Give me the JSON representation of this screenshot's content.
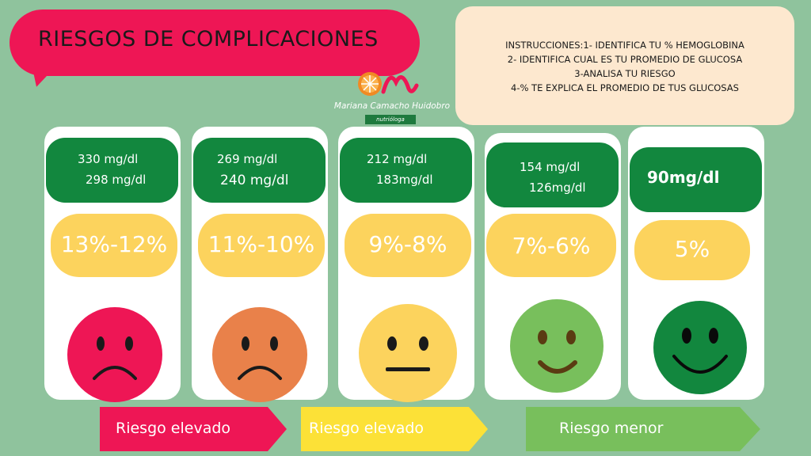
{
  "title": "RIESGOS DE COMPLICACIONES",
  "logo": {
    "name": "Mariana Camacho Huidobro",
    "subtitle": "nutrióloga",
    "icon": "orange-slice-logo-icon"
  },
  "instructions": [
    "INSTRUCCIONES:1- IDENTIFICA TU % HEMOGLOBINA",
    "2- IDENTIFICA  CUAL ES TU PROMEDIO DE GLUCOSA",
    "3-ANALISA TU RIESGO",
    "4-% TE EXPLICA EL PROMEDIO DE  TUS GLUCOSAS"
  ],
  "cards": [
    {
      "glucose": [
        "330 mg/dl",
        "298 mg/dl"
      ],
      "hemoglobin": "13%-12%",
      "face": "very-sad-face-icon",
      "face_color": "#ee1655"
    },
    {
      "glucose": [
        "269 mg/dl",
        "240 mg/dl"
      ],
      "hemoglobin": "11%-10%",
      "face": "sad-face-icon",
      "face_color": "#e9814a"
    },
    {
      "glucose": [
        "212 mg/dl",
        "183mg/dl"
      ],
      "hemoglobin": "9%-8%",
      "face": "neutral-face-icon",
      "face_color": "#fcd35d"
    },
    {
      "glucose": [
        "154 mg/dl",
        "126mg/dl"
      ],
      "hemoglobin": "7%-6%",
      "face": "smile-face-icon",
      "face_color": "#78bf5c"
    },
    {
      "glucose": [
        "90mg/dl"
      ],
      "hemoglobin": "5%",
      "face": "big-smile-face-icon",
      "face_color": "#12873e"
    }
  ],
  "risk_labels": [
    {
      "label": "Riesgo elevado",
      "color": "#ee1655"
    },
    {
      "label": "Riesgo elevado",
      "color": "#fce137"
    },
    {
      "label": "Riesgo menor",
      "color": "#78bf5c"
    }
  ],
  "colors": {
    "background": "#8fc39d",
    "title_bubble": "#ee1655",
    "instructions_bg": "#fde8cf",
    "glucose_box": "#12873e",
    "hemoglobin_box": "#fcd35d"
  }
}
